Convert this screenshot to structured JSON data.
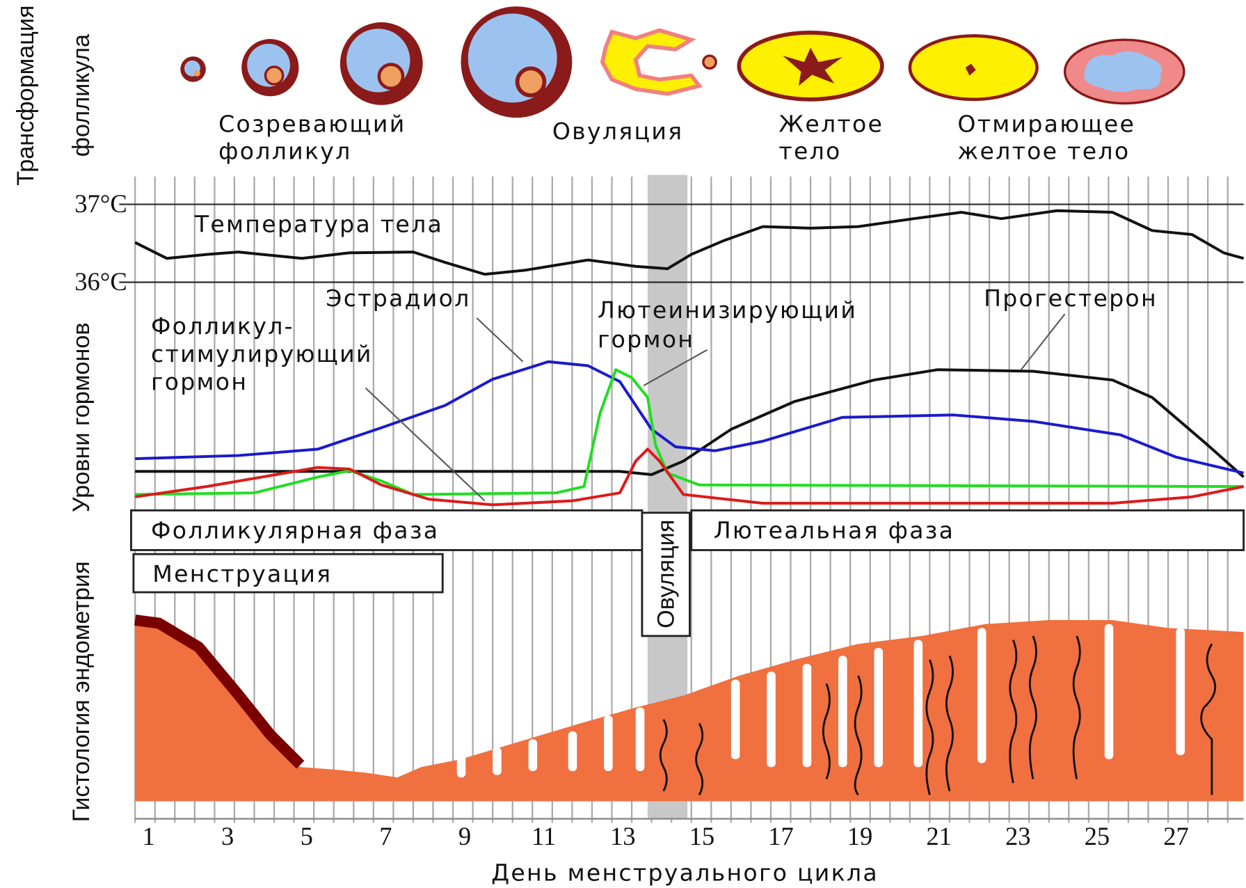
{
  "side_labels": {
    "follicle": [
      "Трансформация",
      "фолликула"
    ],
    "hormones": "Уровни гормонов",
    "endometrium": "Гистология эндометрия"
  },
  "follicle_stages": [
    [
      "Созревающий",
      "фолликул"
    ],
    [
      "Овуляция"
    ],
    [
      "Желтое",
      "тело"
    ],
    [
      "Отмирающее",
      "желтое тело"
    ]
  ],
  "temperature": {
    "title": "Температура тела",
    "high": "37°C",
    "low": "36°C"
  },
  "hormones": {
    "estradiol": "Эстрадиол",
    "lh": [
      "Лютеинизирующий",
      "гормон"
    ],
    "progesterone": "Прогестерон",
    "fsh": [
      "Фолликул-",
      "стимулирующий",
      "гормон"
    ]
  },
  "phases": {
    "follicular": "Фолликулярная фаза",
    "ovulation": "Овуляция",
    "luteal": "Лютеальная фаза",
    "menstruation": "Менструация"
  },
  "x_axis": {
    "title": "День менструального цикла",
    "days": [
      1,
      3,
      5,
      7,
      9,
      11,
      13,
      15,
      17,
      19,
      21,
      23,
      25,
      27
    ]
  }
}
